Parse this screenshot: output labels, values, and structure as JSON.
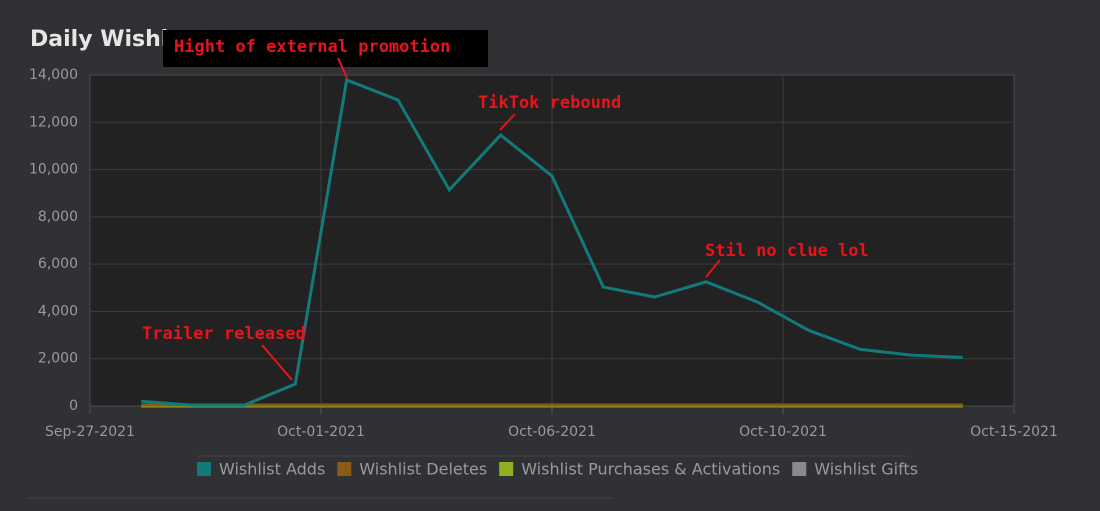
{
  "chart_data": {
    "type": "line",
    "title": "Daily Wishl",
    "x": [
      "2021-09-28",
      "2021-09-29",
      "2021-09-30",
      "2021-10-01",
      "2021-10-02",
      "2021-10-03",
      "2021-10-04",
      "2021-10-05",
      "2021-10-06",
      "2021-10-07",
      "2021-10-08",
      "2021-10-09",
      "2021-10-10",
      "2021-10-11",
      "2021-10-12",
      "2021-10-13",
      "2021-10-14"
    ],
    "xlim": [
      "2021-09-27T00:00",
      "2021-10-15T00:00"
    ],
    "xticks": [
      {
        "value": "2021-09-27T00:00",
        "label": "Sep-27-2021"
      },
      {
        "value": "2021-10-01T12:00",
        "label": "Oct-01-2021"
      },
      {
        "value": "2021-10-06T00:00",
        "label": "Oct-06-2021"
      },
      {
        "value": "2021-10-10T12:00",
        "label": "Oct-10-2021"
      },
      {
        "value": "2021-10-15T00:00",
        "label": "Oct-15-2021"
      }
    ],
    "ylim": [
      0,
      14000
    ],
    "yticks": [
      0,
      {
        "value": 2000,
        "label": "2,000"
      },
      {
        "value": 4000,
        "label": "4,000"
      },
      {
        "value": 6000,
        "label": "6,000"
      },
      {
        "value": 8000,
        "label": "8,000"
      },
      {
        "value": 10000,
        "label": "10,000"
      },
      {
        "value": 12000,
        "label": "12,000"
      },
      {
        "value": 14000,
        "label": "14,000"
      }
    ],
    "grid": true,
    "series": [
      {
        "name": "Wishlist Adds",
        "color": "#137a7c",
        "values": [
          200,
          30,
          30,
          930,
          13790,
          12940,
          9140,
          11460,
          9730,
          5030,
          4610,
          5250,
          4400,
          3200,
          2400,
          2150,
          2050
        ]
      },
      {
        "name": "Wishlist Deletes",
        "color": "#8a5a16",
        "values": [
          40,
          40,
          40,
          40,
          40,
          40,
          40,
          40,
          40,
          40,
          40,
          40,
          40,
          40,
          40,
          40,
          40
        ]
      },
      {
        "name": "Wishlist Purchases & Activations",
        "color": "#8fb021",
        "values": [
          10,
          10,
          10,
          10,
          10,
          10,
          10,
          10,
          10,
          10,
          10,
          10,
          10,
          10,
          10,
          10,
          10
        ]
      },
      {
        "name": "Wishlist Gifts",
        "color": "#8a8a8a",
        "values": [
          0,
          0,
          0,
          0,
          0,
          0,
          0,
          0,
          0,
          0,
          0,
          0,
          0,
          0,
          0,
          0,
          0
        ]
      }
    ],
    "annotations": [
      "Hight of external promotion",
      "TikTok rebound",
      "Stil no clue lol",
      "Trailer released"
    ]
  }
}
